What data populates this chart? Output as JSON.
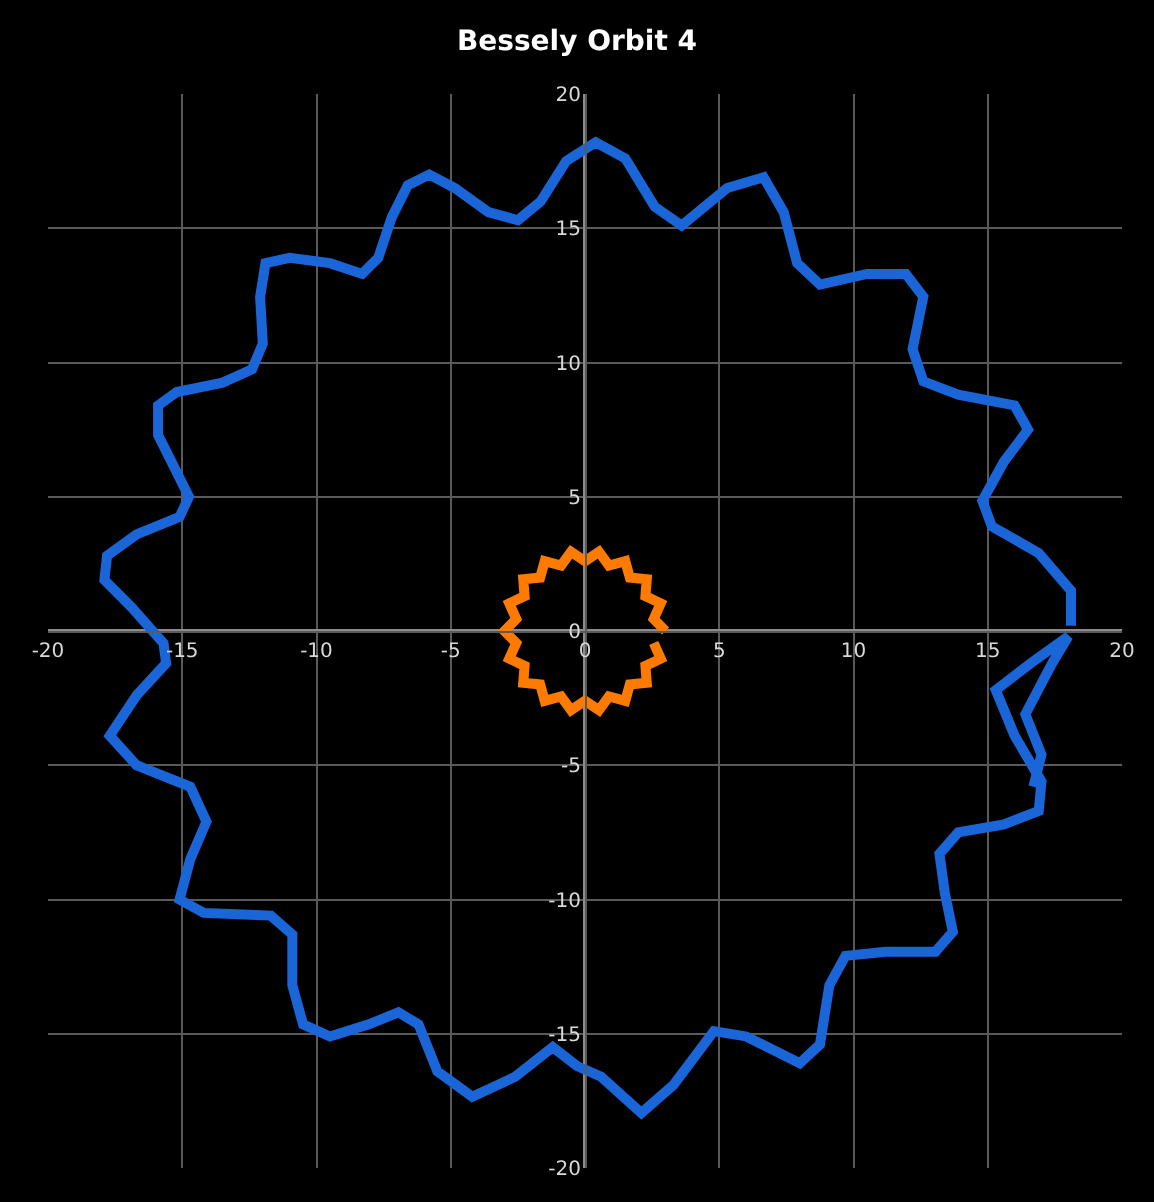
{
  "chart_data": {
    "type": "line",
    "title": "Bessely Orbit 4",
    "xlim": [
      -20,
      20
    ],
    "ylim": [
      -20,
      20
    ],
    "xticks": [
      -20,
      -15,
      -10,
      -5,
      0,
      5,
      10,
      15,
      20
    ],
    "yticks": [
      -20,
      -15,
      -10,
      -5,
      0,
      5,
      10,
      15,
      20
    ],
    "grid": true,
    "marker": "none",
    "line_style": "solid",
    "series": [
      {
        "color": "#1a66d9",
        "x": [
          18.1,
          18.1,
          16.9,
          15.15,
          14.8,
          15.6,
          16.5,
          16.0,
          13.9,
          12.6,
          12.2,
          12.6,
          11.95,
          10.5,
          8.75,
          7.9,
          7.4,
          6.65,
          5.3,
          3.6,
          2.6,
          1.5,
          0.4,
          -0.7,
          -1.65,
          -2.5,
          -3.6,
          -4.85,
          -5.8,
          -6.6,
          -7.2,
          -7.7,
          -8.3,
          -9.5,
          -11.0,
          -11.9,
          -12.1,
          -12.0,
          -12.4,
          -13.5,
          -15.2,
          -15.9,
          -15.9,
          -15.3,
          -14.75,
          -15.1,
          -16.7,
          -17.8,
          -17.9,
          -16.9,
          -15.7,
          -15.6,
          -16.7,
          -17.7,
          -16.7,
          -14.7,
          -14.1,
          -14.7,
          -15.1,
          -14.2,
          -11.7,
          -10.9,
          -10.9,
          -10.5,
          -9.5,
          -8.05,
          -6.95,
          -6.2,
          -5.5,
          -4.2,
          -2.6,
          -1.2,
          -0.3,
          0.6,
          2.1,
          3.3,
          4.8,
          6.0,
          8.0,
          8.75,
          9.1,
          9.7,
          11.2,
          13.05,
          13.7,
          13.4,
          13.2,
          13.9,
          15.6,
          16.9,
          17.0,
          16.0,
          15.3,
          16.6,
          18.0,
          17.4,
          16.4,
          17.0,
          16.7
        ],
        "values": [
          0.2,
          1.5,
          2.9,
          3.9,
          4.85,
          6.3,
          7.5,
          8.4,
          8.8,
          9.3,
          10.5,
          12.45,
          13.3,
          13.3,
          12.9,
          13.7,
          15.6,
          16.9,
          16.5,
          15.1,
          15.8,
          17.6,
          18.2,
          17.5,
          16.0,
          15.3,
          15.6,
          16.5,
          17.0,
          16.6,
          15.4,
          13.9,
          13.3,
          13.7,
          13.9,
          13.7,
          12.45,
          10.7,
          9.75,
          9.25,
          8.9,
          8.4,
          7.3,
          6.1,
          5.0,
          4.25,
          3.6,
          2.8,
          1.9,
          0.9,
          -0.45,
          -1.2,
          -2.4,
          -3.9,
          -5.0,
          -5.8,
          -7.1,
          -8.5,
          -10.0,
          -10.5,
          -10.6,
          -11.3,
          -13.2,
          -14.65,
          -15.1,
          -14.65,
          -14.2,
          -14.65,
          -16.4,
          -17.35,
          -16.6,
          -15.5,
          -16.2,
          -16.6,
          -17.95,
          -16.9,
          -14.9,
          -15.1,
          -16.1,
          -15.4,
          -13.2,
          -12.1,
          -11.95,
          -11.95,
          -11.2,
          -9.75,
          -8.3,
          -7.5,
          -7.2,
          -6.7,
          -5.6,
          -3.9,
          -2.2,
          -1.2,
          -0.2,
          -1.2,
          -3.1,
          -4.6,
          -5.8
        ]
      },
      {
        "color": "#ff7a00",
        "x": [
          3.0,
          2.56,
          2.82,
          2.25,
          2.3,
          1.67,
          1.5,
          0.89,
          0.52,
          0,
          -0.52,
          -0.89,
          -1.5,
          -1.67,
          -2.3,
          -2.25,
          -2.82,
          -2.56,
          -3.0,
          -2.56,
          -2.82,
          -2.25,
          -2.3,
          -1.67,
          -1.5,
          -0.89,
          -0.52,
          0,
          0.52,
          0.89,
          1.5,
          1.67,
          2.3,
          2.25,
          2.82,
          2.56
        ],
        "values": [
          0,
          0.45,
          1.03,
          1.3,
          1.93,
          1.99,
          2.6,
          2.44,
          2.95,
          2.6,
          2.95,
          2.44,
          2.6,
          1.99,
          1.93,
          1.3,
          1.03,
          0.45,
          0,
          -0.45,
          -1.03,
          -1.3,
          -1.93,
          -1.99,
          -2.6,
          -2.44,
          -2.95,
          -2.6,
          -2.95,
          -2.44,
          -2.6,
          -1.99,
          -1.93,
          -1.3,
          -1.03,
          -0.45
        ]
      }
    ]
  }
}
